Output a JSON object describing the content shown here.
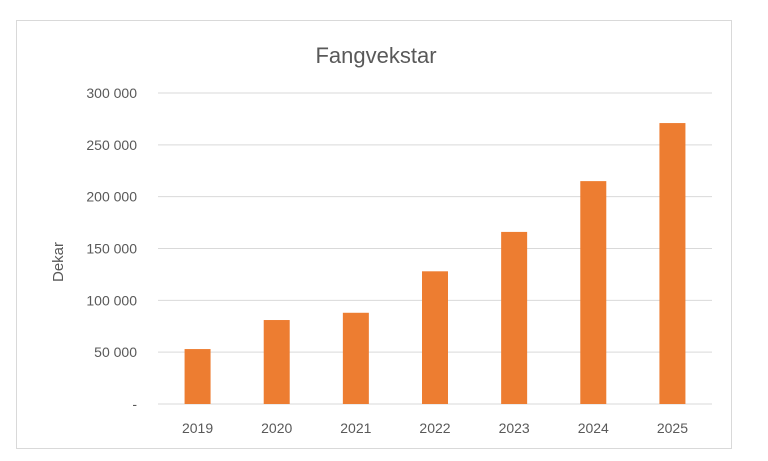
{
  "chart_data": {
    "type": "bar",
    "title": "Fangvekstar",
    "xlabel": "",
    "ylabel": "Dekar",
    "categories": [
      "2019",
      "2020",
      "2021",
      "2022",
      "2023",
      "2024",
      "2025"
    ],
    "values": [
      53000,
      81000,
      88000,
      128000,
      166000,
      215000,
      271000
    ],
    "ylim": [
      0,
      300000
    ],
    "yticks": [
      0,
      50000,
      100000,
      150000,
      200000,
      250000,
      300000
    ],
    "ytick_labels": [
      "-",
      "50 000",
      "100 000",
      "150 000",
      "200 000",
      "250 000",
      "300 000"
    ],
    "bar_color": "#ed7d31",
    "grid": true,
    "legend": "none"
  }
}
